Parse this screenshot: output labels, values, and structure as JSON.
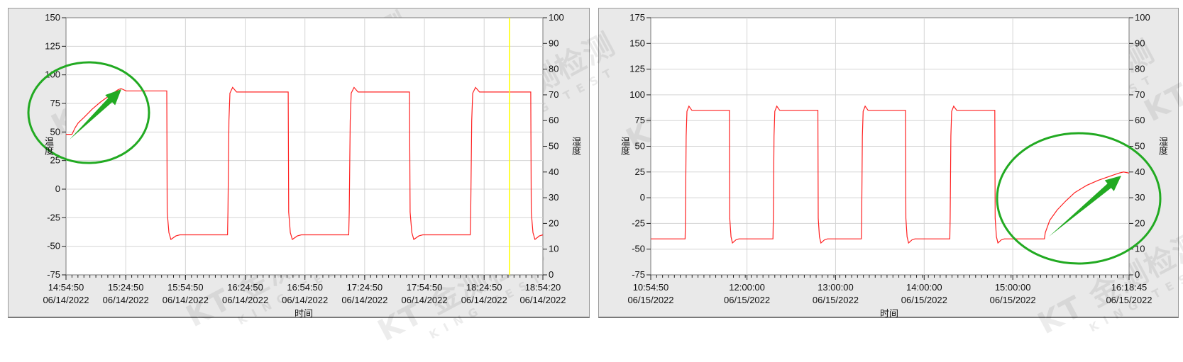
{
  "watermark": {
    "logo": "KT",
    "text": "金测检测",
    "subtext": "KING TEST"
  },
  "colors": {
    "series": "#ff2020",
    "cursor": "#ffff00",
    "annotation": "#22aa22",
    "grid": "#d4d4d4",
    "panel": "#e9e9e9"
  },
  "chart_data": [
    {
      "type": "line",
      "xlabel": "时间",
      "ylabel": "温度",
      "y2label": "湿度",
      "ylim": [
        -75,
        150
      ],
      "yticks": [
        -75,
        -50,
        -25,
        0,
        25,
        50,
        75,
        100,
        125,
        150
      ],
      "y2lim": [
        0,
        100
      ],
      "y2ticks": [
        0,
        10,
        20,
        30,
        40,
        50,
        60,
        70,
        80,
        90,
        100
      ],
      "xlim": [
        "14:54:50",
        "18:54:20"
      ],
      "xticks": [
        {
          "time": "14:54:50",
          "date": "06/14/2022"
        },
        {
          "time": "15:24:50",
          "date": "06/14/2022"
        },
        {
          "time": "15:54:50",
          "date": "06/14/2022"
        },
        {
          "time": "16:24:50",
          "date": "06/14/2022"
        },
        {
          "time": "16:54:50",
          "date": "06/14/2022"
        },
        {
          "time": "17:24:50",
          "date": "06/14/2022"
        },
        {
          "time": "17:54:50",
          "date": "06/14/2022"
        },
        {
          "time": "18:24:50",
          "date": "06/14/2022"
        },
        {
          "time": "18:54:20",
          "date": "06/14/2022"
        }
      ],
      "grid": true,
      "cursor_x": "18:37:33",
      "annotation": "circle-with-arrow",
      "series": [
        {
          "points": [
            [
              "14:54:50",
              48
            ],
            [
              "14:57:50",
              48
            ],
            [
              "14:59:30",
              54
            ],
            [
              "15:01:00",
              58
            ],
            [
              "15:04:00",
              63
            ],
            [
              "15:08:00",
              70
            ],
            [
              "15:12:00",
              76
            ],
            [
              "15:16:00",
              81
            ],
            [
              "15:18:30",
              84
            ],
            [
              "15:21:00",
              87
            ],
            [
              "15:22:30",
              88
            ],
            [
              "15:25:00",
              86
            ],
            [
              "15:45:26",
              86
            ],
            [
              "15:45:40",
              -20
            ],
            [
              "15:46:30",
              -38
            ],
            [
              "15:47:30",
              -44
            ],
            [
              "15:50:00",
              -41
            ],
            [
              "15:52:00",
              -40
            ],
            [
              "16:15:56",
              -40
            ],
            [
              "16:16:10",
              -20
            ],
            [
              "16:16:40",
              60
            ],
            [
              "16:17:10",
              84
            ],
            [
              "16:18:30",
              89
            ],
            [
              "16:20:30",
              85
            ],
            [
              "16:46:26",
              85
            ],
            [
              "16:46:40",
              -20
            ],
            [
              "16:47:30",
              -38
            ],
            [
              "16:48:30",
              -44
            ],
            [
              "16:51:00",
              -41
            ],
            [
              "16:53:00",
              -40
            ],
            [
              "17:16:50",
              -40
            ],
            [
              "17:17:05",
              -20
            ],
            [
              "17:17:35",
              60
            ],
            [
              "17:18:05",
              84
            ],
            [
              "17:19:30",
              89
            ],
            [
              "17:21:30",
              85
            ],
            [
              "17:47:20",
              85
            ],
            [
              "17:47:40",
              -20
            ],
            [
              "17:48:30",
              -38
            ],
            [
              "17:49:30",
              -44
            ],
            [
              "17:52:00",
              -41
            ],
            [
              "17:54:00",
              -40
            ],
            [
              "18:17:50",
              -40
            ],
            [
              "18:18:05",
              -20
            ],
            [
              "18:18:35",
              60
            ],
            [
              "18:19:05",
              84
            ],
            [
              "18:20:30",
              89
            ],
            [
              "18:22:30",
              85
            ],
            [
              "18:48:14",
              85
            ],
            [
              "18:48:30",
              -20
            ],
            [
              "18:49:20",
              -38
            ],
            [
              "18:50:20",
              -44
            ],
            [
              "18:52:30",
              -41
            ],
            [
              "18:54:20",
              -40
            ]
          ]
        }
      ]
    },
    {
      "type": "line",
      "xlabel": "时间",
      "ylabel": "温度",
      "y2label": "湿度",
      "ylim": [
        -75,
        175
      ],
      "yticks": [
        -75,
        -50,
        -25,
        0,
        25,
        50,
        75,
        100,
        125,
        150,
        175
      ],
      "y2lim": [
        0,
        100
      ],
      "y2ticks": [
        0,
        10,
        20,
        30,
        40,
        50,
        60,
        70,
        80,
        90,
        100
      ],
      "xlim": [
        "10:54:50",
        "16:18:45"
      ],
      "xticks": [
        {
          "time": "10:54:50",
          "date": "06/15/2022"
        },
        {
          "time": "12:00:00",
          "date": "06/15/2022"
        },
        {
          "time": "13:00:00",
          "date": "06/15/2022"
        },
        {
          "time": "14:00:00",
          "date": "06/15/2022"
        },
        {
          "time": "15:00:00",
          "date": "06/15/2022"
        },
        {
          "time": "16:18:45",
          "date": "06/15/2022"
        }
      ],
      "grid": true,
      "annotation": "circle-with-arrow",
      "series": [
        {
          "points": [
            [
              "10:54:50",
              -40
            ],
            [
              "11:18:05",
              -40
            ],
            [
              "11:18:20",
              -20
            ],
            [
              "11:18:50",
              60
            ],
            [
              "11:19:20",
              84
            ],
            [
              "11:20:40",
              89
            ],
            [
              "11:22:40",
              85
            ],
            [
              "11:48:05",
              85
            ],
            [
              "11:48:20",
              -20
            ],
            [
              "11:49:10",
              -38
            ],
            [
              "11:50:10",
              -44
            ],
            [
              "11:52:30",
              -41
            ],
            [
              "11:54:30",
              -40
            ],
            [
              "12:17:35",
              -40
            ],
            [
              "12:17:50",
              -20
            ],
            [
              "12:18:20",
              60
            ],
            [
              "12:18:50",
              84
            ],
            [
              "12:20:10",
              89
            ],
            [
              "12:22:10",
              85
            ],
            [
              "12:48:00",
              85
            ],
            [
              "12:48:15",
              -20
            ],
            [
              "12:49:05",
              -38
            ],
            [
              "12:50:05",
              -44
            ],
            [
              "12:52:30",
              -41
            ],
            [
              "12:54:30",
              -40
            ],
            [
              "13:17:25",
              -40
            ],
            [
              "13:17:40",
              -20
            ],
            [
              "13:18:10",
              60
            ],
            [
              "13:18:40",
              84
            ],
            [
              "13:20:00",
              89
            ],
            [
              "13:22:00",
              85
            ],
            [
              "13:47:20",
              85
            ],
            [
              "13:47:35",
              -20
            ],
            [
              "13:48:25",
              -38
            ],
            [
              "13:49:25",
              -44
            ],
            [
              "13:51:45",
              -41
            ],
            [
              "13:53:45",
              -40
            ],
            [
              "14:17:20",
              -40
            ],
            [
              "14:17:35",
              -20
            ],
            [
              "14:18:05",
              60
            ],
            [
              "14:18:35",
              84
            ],
            [
              "14:20:00",
              89
            ],
            [
              "14:22:00",
              85
            ],
            [
              "14:47:50",
              85
            ],
            [
              "14:48:05",
              -20
            ],
            [
              "14:48:55",
              -38
            ],
            [
              "14:49:55",
              -44
            ],
            [
              "14:52:15",
              -41
            ],
            [
              "14:54:15",
              -40
            ],
            [
              "15:21:25",
              -40
            ],
            [
              "15:22:00",
              -34
            ],
            [
              "15:23:00",
              -30
            ],
            [
              "15:25:00",
              -22
            ],
            [
              "15:30:00",
              -12
            ],
            [
              "15:36:00",
              -3
            ],
            [
              "15:42:00",
              5
            ],
            [
              "15:50:00",
              12
            ],
            [
              "15:58:00",
              17
            ],
            [
              "16:06:00",
              21
            ],
            [
              "16:12:00",
              24
            ],
            [
              "16:15:00",
              25
            ],
            [
              "16:18:45",
              24
            ]
          ]
        }
      ]
    }
  ]
}
